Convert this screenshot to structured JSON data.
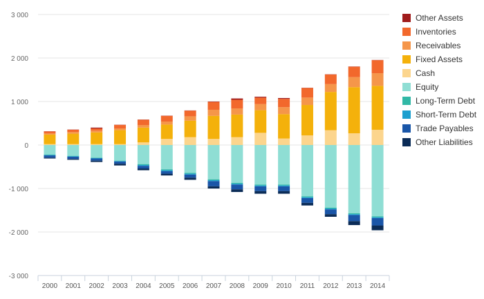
{
  "chart_data": {
    "type": "bar",
    "stacked": true,
    "categories": [
      "2000",
      "2001",
      "2002",
      "2003",
      "2004",
      "2005",
      "2006",
      "2007",
      "2008",
      "2009",
      "2010",
      "2011",
      "2012",
      "2013",
      "2014"
    ],
    "ylim": [
      -3000,
      3000
    ],
    "yticks": [
      3000,
      2000,
      1000,
      0,
      -1000,
      -2000,
      -3000
    ],
    "ytick_labels": [
      "3 000",
      "2 000",
      "1 000",
      "0",
      "-1 000",
      "-2 000",
      "-3 000"
    ],
    "grid": true,
    "legend_position": "right",
    "title": "",
    "xlabel": "",
    "ylabel": "",
    "series": [
      {
        "name": "Other Assets",
        "color": "#a01c1c",
        "side": "positive",
        "values": [
          5,
          5,
          20,
          5,
          5,
          5,
          5,
          10,
          30,
          20,
          20,
          5,
          5,
          5,
          5
        ]
      },
      {
        "name": "Inventories",
        "color": "#f2682c",
        "side": "positive",
        "values": [
          40,
          50,
          50,
          80,
          120,
          130,
          130,
          180,
          200,
          150,
          190,
          220,
          220,
          240,
          300
        ]
      },
      {
        "name": "Receivables",
        "color": "#f5964a",
        "side": "positive",
        "values": [
          30,
          40,
          40,
          40,
          60,
          70,
          100,
          140,
          140,
          140,
          160,
          170,
          180,
          230,
          290
        ]
      },
      {
        "name": "Fixed Assets",
        "color": "#f4b10b",
        "side": "positive",
        "values": [
          220,
          240,
          270,
          320,
          340,
          330,
          380,
          530,
          520,
          520,
          560,
          700,
          880,
          1060,
          1010
        ]
      },
      {
        "name": "Cash",
        "color": "#fcd58d",
        "side": "positive",
        "values": [
          20,
          20,
          20,
          20,
          60,
          140,
          180,
          140,
          180,
          280,
          150,
          220,
          340,
          270,
          350
        ]
      },
      {
        "name": "Equity",
        "color": "#8fded4",
        "side": "negative",
        "values": [
          -220,
          -250,
          -290,
          -360,
          -440,
          -560,
          -640,
          -790,
          -870,
          -910,
          -910,
          -1180,
          -1440,
          -1570,
          -1640
        ]
      },
      {
        "name": "Long-Term Debt",
        "color": "#31b8a6",
        "side": "negative",
        "values": [
          -10,
          -10,
          -10,
          -10,
          -20,
          -20,
          -20,
          -20,
          -20,
          -20,
          -20,
          -20,
          -20,
          -20,
          -20
        ]
      },
      {
        "name": "Short-Term Debt",
        "color": "#1c9fcf",
        "side": "negative",
        "values": [
          -10,
          -10,
          -10,
          -10,
          -20,
          -20,
          -20,
          -20,
          -20,
          -20,
          -20,
          -20,
          -20,
          -20,
          -20
        ]
      },
      {
        "name": "Trade Payables",
        "color": "#1a56a8",
        "side": "negative",
        "values": [
          -50,
          -50,
          -50,
          -50,
          -60,
          -60,
          -70,
          -120,
          -110,
          -110,
          -110,
          -110,
          -110,
          -140,
          -170
        ]
      },
      {
        "name": "Other Liabilities",
        "color": "#0b2c57",
        "side": "negative",
        "values": [
          -20,
          -20,
          -30,
          -40,
          -40,
          -40,
          -50,
          -50,
          -60,
          -60,
          -60,
          -60,
          -60,
          -90,
          -110
        ]
      }
    ]
  }
}
